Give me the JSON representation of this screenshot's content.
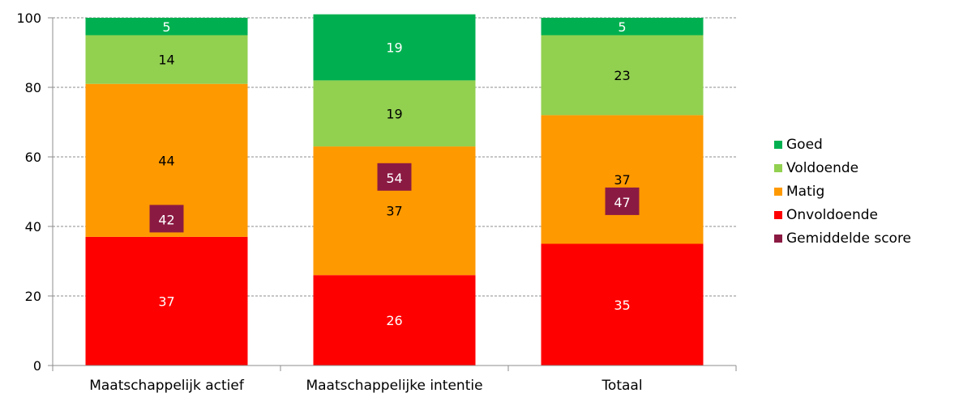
{
  "chart_data": {
    "type": "bar",
    "stacked": true,
    "categories": [
      "Maatschappelijk actief",
      "Maatschappelijke intentie",
      "Totaal"
    ],
    "series": [
      {
        "name": "Onvoldoende",
        "color": "#ff0000",
        "values": [
          37,
          26,
          35
        ]
      },
      {
        "name": "Matig",
        "color": "#ff9900",
        "values": [
          44,
          37,
          37
        ]
      },
      {
        "name": "Voldoende",
        "color": "#92d050",
        "values": [
          14,
          19,
          23
        ]
      },
      {
        "name": "Goed",
        "color": "#00b050",
        "values": [
          5,
          19,
          5
        ]
      }
    ],
    "markers": {
      "name": "Gemiddelde score",
      "color": "#8b1a43",
      "values": [
        42,
        54,
        47
      ]
    },
    "ylim": [
      0,
      100
    ],
    "yticks": [
      "0",
      "20",
      "40",
      "60",
      "80",
      "100"
    ],
    "grid": true,
    "legend_position": "right",
    "legend_order": [
      "Goed",
      "Voldoende",
      "Matig",
      "Onvoldoende",
      "Gemiddelde score"
    ],
    "label_colors": {
      "Onvoldoende": "#ffffff",
      "Matig": "#000000",
      "Voldoende": "#000000",
      "Goed": "#ffffff",
      "Gemiddelde score": "#ffffff"
    }
  }
}
